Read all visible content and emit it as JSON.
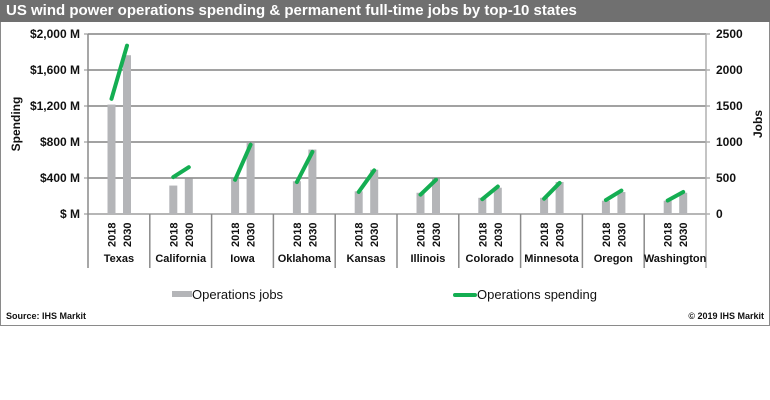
{
  "title": "US wind power operations spending & permanent full-time jobs by top-10 states",
  "source": "Source: IHS Markit",
  "copyright": "© 2019 IHS Markit",
  "colors": {
    "bars": "#b4b5b8",
    "line": "#14ae52",
    "title_bg": "#707070"
  },
  "chart_data": {
    "type": "bar+line",
    "categories": [
      "Texas",
      "California",
      "Iowa",
      "Oklahoma",
      "Kansas",
      "Illinois",
      "Colorado",
      "Minnesota",
      "Oregon",
      "Washington"
    ],
    "years": [
      "2018",
      "2030"
    ],
    "left_axis": {
      "label": "Spending",
      "range": [
        0,
        2000
      ],
      "ticks": [
        "$ M",
        "$400 M",
        "$800 M",
        "$1,200 M",
        "$1,600 M",
        "$2,000 M"
      ]
    },
    "right_axis": {
      "label": "Jobs",
      "range": [
        0,
        2500
      ],
      "ticks": [
        "0",
        "500",
        "1000",
        "1500",
        "2000",
        "2500"
      ]
    },
    "grid": true,
    "legend_position": "bottom",
    "series": [
      {
        "name": "Operations jobs",
        "type": "bar",
        "axis": "right",
        "values": [
          [
            1520,
            2205
          ],
          [
            395,
            490
          ],
          [
            490,
            985
          ],
          [
            455,
            895
          ],
          [
            315,
            615
          ],
          [
            295,
            490
          ],
          [
            225,
            365
          ],
          [
            225,
            445
          ],
          [
            185,
            305
          ],
          [
            185,
            295
          ]
        ]
      },
      {
        "name": "Operations spending",
        "type": "line",
        "axis": "left",
        "values": [
          [
            1280,
            1870
          ],
          [
            410,
            520
          ],
          [
            380,
            770
          ],
          [
            355,
            690
          ],
          [
            245,
            485
          ],
          [
            215,
            380
          ],
          [
            165,
            305
          ],
          [
            170,
            345
          ],
          [
            155,
            260
          ],
          [
            150,
            245
          ]
        ]
      }
    ]
  }
}
